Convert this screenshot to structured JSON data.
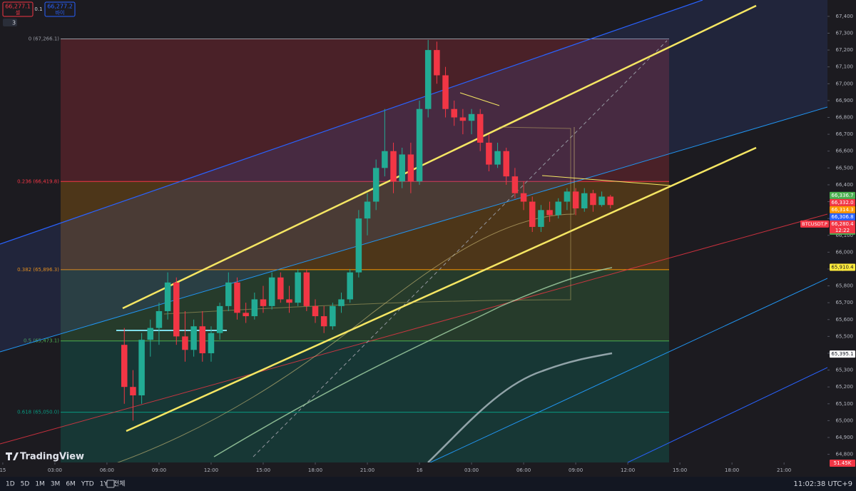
{
  "chart_data": {
    "type": "candlestick",
    "x": [
      7,
      7.5,
      8,
      8.5,
      9,
      9.5,
      10,
      10.5,
      11,
      11.5,
      12,
      12.5,
      13,
      13.5,
      14,
      14.5,
      15,
      15.5,
      16,
      16.5,
      17,
      17.5,
      18,
      18.5,
      19,
      19.5,
      20,
      20.5,
      21,
      21.5,
      22,
      22.5,
      23,
      23.5,
      24,
      24.5,
      25,
      25.5,
      26,
      26.5,
      27,
      27.5,
      28,
      28.5,
      29,
      29.5,
      30,
      30.5,
      31,
      31.5,
      32,
      32.5,
      33,
      33.5,
      34,
      34.5,
      35
    ],
    "open": [
      65450,
      65200,
      65150,
      65480,
      65550,
      65650,
      65820,
      65500,
      65420,
      65560,
      65400,
      65520,
      65680,
      65820,
      65640,
      65620,
      65720,
      65680,
      65850,
      65720,
      65700,
      65880,
      65680,
      65620,
      65560,
      65680,
      65720,
      65880,
      66200,
      66300,
      66500,
      66600,
      66420,
      66580,
      66420,
      66850,
      67200,
      67050,
      66850,
      66800,
      66780,
      66820,
      66650,
      66520,
      66600,
      66450,
      66350,
      66300,
      66150,
      66250,
      66220,
      66300,
      66360,
      66260,
      66350,
      66280,
      66330
    ],
    "high": [
      65550,
      65300,
      65520,
      65600,
      65700,
      65880,
      65850,
      65650,
      65600,
      65650,
      65560,
      65700,
      65880,
      65850,
      65700,
      65760,
      65800,
      65880,
      65880,
      65800,
      65900,
      65900,
      65720,
      65680,
      65700,
      65760,
      65900,
      66250,
      66350,
      66550,
      66850,
      66650,
      66620,
      66650,
      66900,
      67260,
      67250,
      67100,
      66900,
      66850,
      66850,
      66850,
      66700,
      66650,
      66620,
      66500,
      66420,
      66330,
      66280,
      66300,
      66320,
      66380,
      66380,
      66380,
      66370,
      66360,
      66340
    ],
    "low": [
      65100,
      65000,
      65100,
      65380,
      65450,
      65600,
      65450,
      65350,
      65380,
      65350,
      65350,
      65480,
      65650,
      65600,
      65580,
      65600,
      65640,
      65660,
      65700,
      65640,
      65680,
      65650,
      65580,
      65520,
      65540,
      65640,
      65700,
      65850,
      66100,
      66250,
      66450,
      66350,
      66380,
      66350,
      66400,
      66800,
      67000,
      66800,
      66750,
      66700,
      66700,
      66600,
      66480,
      66500,
      66400,
      66320,
      66250,
      66120,
      66120,
      66180,
      66200,
      66250,
      66220,
      66240,
      66240,
      66270,
      66260
    ],
    "close": [
      65200,
      65150,
      65480,
      65550,
      65650,
      65820,
      65500,
      65420,
      65560,
      65400,
      65520,
      65680,
      65820,
      65640,
      65620,
      65720,
      65680,
      65850,
      65720,
      65700,
      65880,
      65680,
      65620,
      65560,
      65680,
      65720,
      65880,
      66200,
      66300,
      66500,
      66600,
      66420,
      66580,
      66420,
      66850,
      67200,
      67050,
      66850,
      66800,
      66780,
      66820,
      66650,
      66520,
      66600,
      66450,
      66350,
      66300,
      66150,
      66250,
      66220,
      66300,
      66360,
      66260,
      66350,
      66280,
      66330,
      66280
    ],
    "up_color": "#22ab94",
    "down_color": "#f23645",
    "xlim": [
      -0.16,
      47.5
    ],
    "ylim": [
      64667,
      67497
    ],
    "xticks": [
      {
        "value": 0,
        "label": "15"
      },
      {
        "value": 3,
        "label": "03:00"
      },
      {
        "value": 6,
        "label": "06:00"
      },
      {
        "value": 9,
        "label": "09:00"
      },
      {
        "value": 12,
        "label": "12:00"
      },
      {
        "value": 15,
        "label": "15:00"
      },
      {
        "value": 18,
        "label": "18:00"
      },
      {
        "value": 21,
        "label": "21:00"
      },
      {
        "value": 24,
        "label": "16"
      },
      {
        "value": 27,
        "label": "03:00"
      },
      {
        "value": 30,
        "label": "06:00"
      },
      {
        "value": 33,
        "label": "09:00"
      },
      {
        "value": 36,
        "label": "12:00"
      },
      {
        "value": 39,
        "label": "15:00"
      },
      {
        "value": 42,
        "label": "18:00"
      },
      {
        "value": 45,
        "label": "21:00"
      }
    ],
    "yticks": [
      {
        "value": 64800,
        "label": "64,800"
      },
      {
        "value": 64900,
        "label": "64,900"
      },
      {
        "value": 65000,
        "label": "65,000"
      },
      {
        "value": 65100,
        "label": "65,100"
      },
      {
        "value": 65200,
        "label": "65,200"
      },
      {
        "value": 65300,
        "label": "65,300"
      },
      {
        "value": 65400,
        "label": "65,400"
      },
      {
        "value": 65500,
        "label": "65,500"
      },
      {
        "value": 65600,
        "label": "65,600"
      },
      {
        "value": 65700,
        "label": "65,700"
      },
      {
        "value": 65800,
        "label": "65,800"
      },
      {
        "value": 65900,
        "label": "65,900"
      },
      {
        "value": 66000,
        "label": "66,000"
      },
      {
        "value": 66100,
        "label": "66,100"
      },
      {
        "value": 66200,
        "label": "66,200"
      },
      {
        "value": 66300,
        "label": "66,300"
      },
      {
        "value": 66400,
        "label": "66,400"
      },
      {
        "value": 66500,
        "label": "66,500"
      },
      {
        "value": 66600,
        "label": "66,600"
      },
      {
        "value": 66700,
        "label": "66,700"
      },
      {
        "value": 66800,
        "label": "66,800"
      },
      {
        "value": 66900,
        "label": "66,900"
      },
      {
        "value": 67000,
        "label": "67,000"
      },
      {
        "value": 67100,
        "label": "67,100"
      },
      {
        "value": 67200,
        "label": "67,200"
      },
      {
        "value": 67300,
        "label": "67,300"
      },
      {
        "value": 67400,
        "label": "67,400"
      }
    ],
    "fib_levels": [
      {
        "value": 67266.1,
        "label": "0 (67,266.1)",
        "color": "#9598a1"
      },
      {
        "value": 66419.8,
        "label": "0.236 (66,419.8)",
        "color": "#f23645"
      },
      {
        "value": 65896.3,
        "label": "0.382 (65,896.3)",
        "color": "#ff9800"
      },
      {
        "value": 65473.1,
        "label": "0.5 (65,473.1)",
        "color": "#4caf50"
      },
      {
        "value": 65050.0,
        "label": "0.618 (65,050.0)",
        "color": "#089981"
      }
    ],
    "price_tags": [
      {
        "value": 66336.7,
        "label": "66,336.7",
        "color": "#4caf50"
      },
      {
        "value": 66332.0,
        "label": "66,332.0",
        "color": "#f23645"
      },
      {
        "value": 66314.3,
        "label": "66,314.3",
        "color": "#ff9800"
      },
      {
        "value": 66306.8,
        "label": "66,306.8",
        "color": "#2962ff"
      },
      {
        "value": 66280.4,
        "label": "66,280.4",
        "color": "#f23645"
      },
      {
        "value": 66276.8,
        "label": "66,276.8",
        "color": "#4caf50"
      },
      {
        "value": 65910.4,
        "label": "65,910.4",
        "color": "#ffeb3b"
      },
      {
        "value": 65395.1,
        "label": "65,395.1",
        "color": "#ffffff"
      }
    ],
    "symbol": "BTCUSDT.P",
    "countdown": "12:22",
    "volume_label": "51.45K"
  },
  "toolbar": {
    "sell_price": "66,277.1",
    "sell": "셀",
    "spread": "0.1",
    "buy_price": "66,277.2",
    "buy": "바이",
    "indicators_count": "3"
  },
  "logo": "TradingView",
  "bottom_bar": {
    "ranges": [
      "1D",
      "5D",
      "1M",
      "3M",
      "6M",
      "YTD",
      "1Y",
      "전체"
    ],
    "clock": "11:02:38 UTC+9"
  }
}
